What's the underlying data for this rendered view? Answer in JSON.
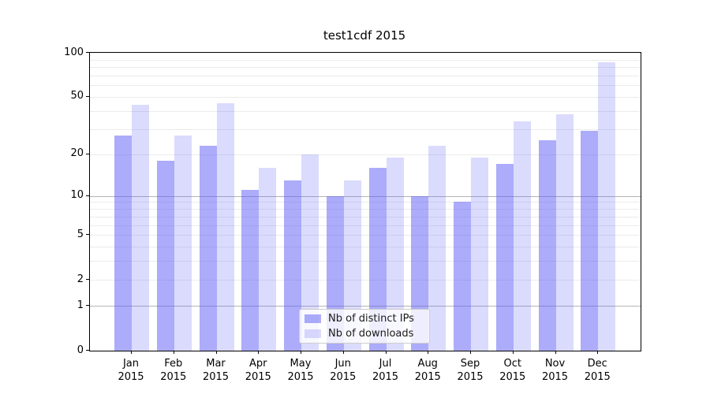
{
  "figure": {
    "title": "test1cdf 2015",
    "background": "#ffffff"
  },
  "chart_data": {
    "type": "bar",
    "title": "test1cdf 2015",
    "categories": [
      "Jan",
      "Feb",
      "Mar",
      "Apr",
      "May",
      "Jun",
      "Jul",
      "Aug",
      "Sep",
      "Oct",
      "Nov",
      "Dec"
    ],
    "category_year": "2015",
    "series": [
      {
        "name": "Nb of distinct IPs",
        "color": "#5a5af5",
        "opacity": 0.5,
        "values": [
          27,
          18,
          23,
          11,
          13,
          10,
          16,
          10,
          9,
          17,
          25,
          29
        ]
      },
      {
        "name": "Nb of downloads",
        "color": "#5a5af5",
        "opacity": 0.22,
        "values": [
          44,
          27,
          45,
          16,
          20,
          13,
          19,
          23,
          19,
          34,
          38,
          86
        ]
      }
    ],
    "xlabel": "",
    "ylabel": "",
    "yscale": "log1p",
    "ylim": [
      0,
      100
    ],
    "y_tick_labels": [
      "100",
      "50",
      "20",
      "10",
      "5",
      "2",
      "1",
      "0"
    ],
    "y_tick_values": [
      100,
      50,
      20,
      10,
      5,
      2,
      1,
      0
    ],
    "y_gridlines_major": [
      1,
      10
    ],
    "y_gridlines_minor": [
      2,
      3,
      4,
      5,
      6,
      7,
      8,
      9,
      20,
      30,
      40,
      50,
      60,
      70,
      80,
      90
    ],
    "grid": true,
    "legend_position": "lower center"
  },
  "colors": {
    "grid_major": "#b4b4b4",
    "grid_minor": "#ebebeb",
    "spine": "#000000",
    "text": "#000000"
  }
}
